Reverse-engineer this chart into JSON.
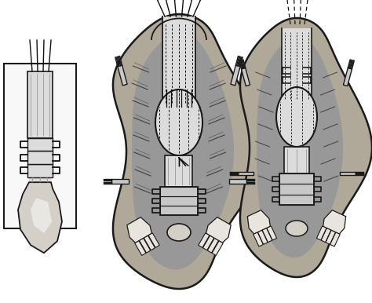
{
  "figsize": [
    4.74,
    3.86
  ],
  "dpi": 100,
  "bg_color": "#ffffff",
  "line_color": "#1a1a1a",
  "line_color2": "#2a2a2a",
  "shading_light": "#c8c8c8",
  "shading_mid": "#989898",
  "shading_dark": "#585858",
  "flesh_light": "#e8e4de",
  "flesh_dark": "#b8b0a0",
  "tendon_light": "#dcdcdc",
  "tendon_dark": "#a8a8a8",
  "bone_color": "#d4d0c8",
  "suture_color": "#101010",
  "bg_tissue": "#b0a898",
  "retractor_color": "#d0d0d0",
  "white": "#f8f8f8"
}
